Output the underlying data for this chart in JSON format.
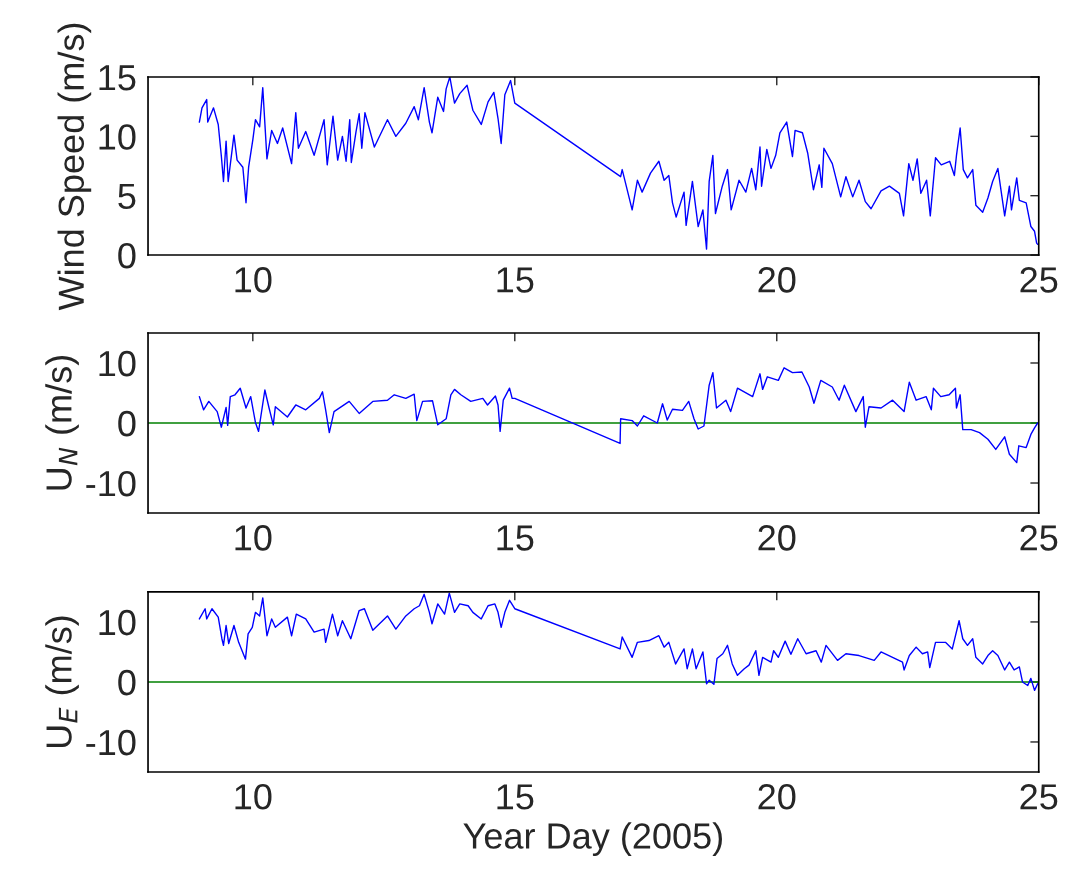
{
  "chart_data": [
    {
      "type": "line",
      "ylabel": "Wind Speed (m/s)",
      "xlim": [
        8,
        25
      ],
      "xticks": [
        10,
        15,
        20,
        25
      ],
      "ylim": [
        0,
        15
      ],
      "yticks": [
        0,
        5,
        10,
        15
      ],
      "grid": false,
      "series": [
        {
          "color": "#0000ff",
          "x": [
            8.98,
            9.03,
            9.12,
            9.14,
            9.25,
            9.34,
            9.4,
            9.44,
            9.49,
            9.53,
            9.64,
            9.7,
            9.81,
            9.87,
            9.92,
            10.0,
            10.05,
            10.13,
            10.19,
            10.27,
            10.36,
            10.47,
            10.57,
            10.74,
            10.82,
            10.87,
            11.01,
            11.17,
            11.36,
            11.42,
            11.53,
            11.62,
            11.71,
            11.78,
            11.85,
            11.88,
            11.97,
            12.03,
            12.08,
            12.14,
            12.32,
            12.57,
            12.73,
            12.92,
            13.08,
            13.16,
            13.27,
            13.37,
            13.42,
            13.53,
            13.64,
            13.69,
            13.76,
            13.85,
            13.95,
            14.09,
            14.2,
            14.36,
            14.49,
            14.6,
            14.68,
            14.74,
            14.81,
            14.92,
            15.0,
            17.02,
            17.05,
            17.24,
            17.34,
            17.43,
            17.59,
            17.75,
            17.85,
            17.94,
            18.01,
            18.08,
            18.23,
            18.27,
            18.39,
            18.5,
            18.59,
            18.66,
            18.71,
            18.78,
            18.83,
            18.96,
            19.06,
            19.13,
            19.28,
            19.41,
            19.52,
            19.6,
            19.68,
            19.71,
            19.81,
            19.89,
            19.98,
            20.06,
            20.19,
            20.3,
            20.35,
            20.49,
            20.59,
            20.7,
            20.81,
            20.86,
            20.9,
            21.06,
            21.22,
            21.32,
            21.45,
            21.57,
            21.69,
            21.8,
            21.99,
            22.15,
            22.34,
            22.42,
            22.52,
            22.6,
            22.68,
            22.75,
            22.86,
            22.93,
            23.03,
            23.14,
            23.3,
            23.39,
            23.43,
            23.5,
            23.56,
            23.64,
            23.74,
            23.8,
            23.93,
            24.03,
            24.12,
            24.22,
            24.35,
            24.44,
            24.48,
            24.58,
            24.63,
            24.76,
            24.85,
            24.92,
            24.96,
            24.98
          ],
          "values": [
            11.2,
            12.4,
            13.1,
            11.2,
            12.4,
            11.0,
            8.3,
            6.2,
            9.6,
            6.2,
            10.1,
            8.0,
            7.4,
            4.4,
            7.4,
            9.7,
            11.4,
            10.8,
            14.1,
            8.1,
            10.5,
            9.4,
            10.7,
            7.7,
            12.0,
            9.0,
            10.4,
            8.4,
            11.4,
            7.6,
            11.7,
            8.0,
            10.0,
            7.9,
            11.4,
            7.8,
            10.4,
            11.9,
            9.0,
            12.0,
            9.1,
            11.4,
            10.0,
            11.1,
            12.5,
            11.4,
            14.1,
            11.2,
            10.3,
            13.3,
            12.1,
            14.0,
            15.0,
            12.8,
            13.6,
            14.3,
            12.2,
            11.0,
            12.9,
            13.7,
            11.5,
            9.4,
            13.5,
            14.7,
            12.8,
            6.6,
            7.2,
            3.8,
            6.3,
            5.3,
            6.9,
            7.9,
            6.3,
            6.7,
            4.4,
            3.2,
            5.3,
            2.5,
            6.2,
            2.4,
            3.8,
            0.5,
            6.2,
            8.4,
            3.5,
            5.8,
            7.2,
            3.8,
            6.3,
            5.3,
            7.3,
            5.5,
            9.1,
            5.8,
            8.9,
            7.3,
            8.4,
            10.3,
            11.2,
            8.3,
            10.5,
            10.3,
            8.6,
            5.5,
            7.6,
            5.7,
            9.0,
            7.7,
            4.9,
            6.6,
            4.9,
            6.3,
            4.5,
            3.9,
            5.4,
            5.8,
            5.2,
            3.3,
            7.7,
            6.3,
            8.1,
            5.2,
            6.3,
            3.3,
            8.2,
            7.6,
            7.9,
            6.7,
            8.4,
            10.7,
            7.2,
            6.5,
            7.2,
            4.2,
            3.6,
            4.8,
            6.2,
            7.3,
            3.3,
            5.8,
            3.8,
            6.5,
            4.6,
            4.4,
            2.4,
            2.0,
            1.0,
            0.9
          ]
        }
      ]
    },
    {
      "type": "line",
      "ylabel": "U$_{N}$ (m/s)",
      "xlim": [
        8,
        25
      ],
      "xticks": [
        10,
        15,
        20,
        25
      ],
      "ylim": [
        -15,
        15
      ],
      "yticks": [
        -10,
        0,
        10
      ],
      "grid": false,
      "ref_lines": [
        {
          "axis": "y",
          "value": 0,
          "color": "#008000"
        }
      ],
      "series": [
        {
          "color": "#0000ff",
          "x": [
            8.98,
            9.06,
            9.16,
            9.32,
            9.4,
            9.49,
            9.52,
            9.57,
            9.66,
            9.76,
            9.87,
            9.96,
            10.05,
            10.11,
            10.23,
            10.31,
            10.39,
            10.43,
            10.66,
            10.82,
            11.01,
            11.27,
            11.33,
            11.39,
            11.46,
            11.55,
            11.84,
            12.03,
            12.29,
            12.57,
            12.7,
            12.92,
            13.08,
            13.13,
            13.24,
            13.43,
            13.53,
            13.69,
            13.78,
            13.85,
            13.97,
            14.16,
            14.39,
            14.48,
            14.63,
            14.68,
            14.72,
            14.78,
            14.9,
            14.95,
            15.0,
            17.01,
            17.02,
            17.24,
            17.34,
            17.46,
            17.72,
            17.82,
            17.91,
            18.01,
            18.2,
            18.32,
            18.42,
            18.5,
            18.61,
            18.71,
            18.78,
            18.85,
            19.03,
            19.12,
            19.25,
            19.54,
            19.68,
            19.73,
            19.82,
            20.03,
            20.14,
            20.3,
            20.48,
            20.62,
            20.71,
            20.84,
            21.06,
            21.19,
            21.29,
            21.51,
            21.65,
            21.69,
            21.76,
            21.99,
            22.21,
            22.43,
            22.53,
            22.66,
            22.85,
            22.95,
            22.99,
            23.13,
            23.29,
            23.41,
            23.43,
            23.5,
            23.55,
            23.71,
            23.87,
            24.03,
            24.18,
            24.35,
            24.44,
            24.58,
            24.62,
            24.76,
            24.85,
            24.92,
            24.98
          ],
          "values": [
            4.4,
            2.2,
            3.6,
            1.9,
            -0.7,
            2.6,
            -0.4,
            4.4,
            4.7,
            5.8,
            2.5,
            4.4,
            0.1,
            -1.4,
            5.5,
            2.5,
            -0.3,
            2.7,
            1.0,
            3.0,
            2.2,
            4.1,
            5.2,
            2.2,
            -1.6,
            1.9,
            3.6,
            1.6,
            3.6,
            3.8,
            4.7,
            4.1,
            4.8,
            0.4,
            3.6,
            3.7,
            -0.3,
            0.7,
            4.7,
            5.6,
            4.7,
            3.6,
            4.1,
            3.0,
            4.5,
            3.0,
            -1.4,
            3.8,
            5.8,
            4.1,
            4.1,
            -3.4,
            0.7,
            0.4,
            -0.5,
            1.2,
            0.0,
            3.2,
            0.5,
            2.3,
            2.1,
            3.6,
            0.7,
            -1.0,
            -0.5,
            6.3,
            8.4,
            2.5,
            3.8,
            1.9,
            5.8,
            4.4,
            8.2,
            5.6,
            7.7,
            7.1,
            9.2,
            8.4,
            8.5,
            6.0,
            3.3,
            7.1,
            6.0,
            3.8,
            6.3,
            1.9,
            4.4,
            -0.7,
            2.7,
            2.5,
            3.8,
            1.9,
            6.8,
            3.8,
            4.4,
            2.2,
            5.8,
            4.4,
            4.7,
            5.8,
            2.5,
            4.7,
            -1.1,
            -1.1,
            -1.6,
            -2.7,
            -4.4,
            -2.3,
            -5.2,
            -6.6,
            -3.8,
            -4.1,
            -1.9,
            -0.8,
            0.0
          ]
        }
      ]
    },
    {
      "type": "line",
      "ylabel": "U$_{E}$ (m/s)",
      "xlabel": "Year Day (2005)",
      "xlim": [
        8,
        25
      ],
      "xticks": [
        10,
        15,
        20,
        25
      ],
      "ylim": [
        -15,
        15
      ],
      "yticks": [
        -10,
        0,
        10
      ],
      "grid": false,
      "ref_lines": [
        {
          "axis": "y",
          "value": 0,
          "color": "#008000"
        }
      ],
      "series": [
        {
          "color": "#0000ff",
          "x": [
            8.98,
            9.09,
            9.12,
            9.22,
            9.34,
            9.41,
            9.44,
            9.49,
            9.54,
            9.64,
            9.73,
            9.86,
            9.91,
            9.99,
            10.05,
            10.13,
            10.19,
            10.27,
            10.36,
            10.43,
            10.66,
            10.74,
            10.83,
            11.01,
            11.17,
            11.36,
            11.39,
            11.52,
            11.62,
            11.71,
            11.87,
            12.03,
            12.13,
            12.29,
            12.57,
            12.73,
            12.92,
            13.08,
            13.18,
            13.27,
            13.37,
            13.42,
            13.53,
            13.66,
            13.75,
            13.85,
            13.95,
            14.11,
            14.2,
            14.36,
            14.49,
            14.62,
            14.68,
            14.74,
            14.81,
            14.9,
            15.0,
            17.01,
            17.05,
            17.24,
            17.34,
            17.56,
            17.75,
            17.85,
            17.94,
            18.07,
            18.23,
            18.29,
            18.39,
            18.46,
            18.59,
            18.66,
            18.71,
            18.8,
            18.86,
            18.97,
            19.06,
            19.15,
            19.25,
            19.38,
            19.47,
            19.6,
            19.66,
            19.73,
            19.89,
            19.94,
            20.03,
            20.16,
            20.27,
            20.4,
            20.56,
            20.75,
            20.85,
            20.94,
            21.16,
            21.32,
            21.57,
            21.86,
            21.99,
            22.21,
            22.4,
            22.43,
            22.53,
            22.66,
            22.78,
            22.88,
            22.92,
            23.03,
            23.22,
            23.35,
            23.48,
            23.55,
            23.64,
            23.74,
            23.8,
            23.93,
            24.03,
            24.12,
            24.22,
            24.35,
            24.44,
            24.53,
            24.63,
            24.69,
            24.79,
            24.85,
            24.92,
            24.98
          ],
          "values": [
            10.5,
            12.2,
            10.5,
            12.2,
            10.8,
            7.2,
            6.1,
            9.4,
            6.4,
            9.4,
            6.6,
            3.8,
            8.0,
            9.1,
            11.6,
            11.0,
            14.0,
            7.7,
            10.5,
            9.1,
            10.8,
            7.7,
            11.3,
            10.5,
            8.3,
            8.8,
            6.6,
            11.3,
            7.7,
            10.2,
            7.2,
            11.9,
            12.2,
            8.6,
            11.0,
            8.8,
            11.0,
            12.2,
            12.7,
            14.6,
            11.6,
            9.7,
            13.0,
            11.3,
            14.8,
            11.6,
            13.0,
            12.7,
            11.6,
            10.5,
            12.7,
            13.0,
            11.6,
            9.1,
            11.6,
            13.6,
            12.2,
            5.5,
            7.5,
            4.1,
            6.6,
            6.9,
            7.7,
            5.8,
            6.6,
            3.0,
            5.5,
            2.2,
            5.5,
            2.2,
            5.0,
            -0.3,
            0.3,
            -0.4,
            3.9,
            4.7,
            6.1,
            3.0,
            1.1,
            2.2,
            2.8,
            5.2,
            1.1,
            4.1,
            3.3,
            5.2,
            4.1,
            6.8,
            4.6,
            7.2,
            4.7,
            5.2,
            3.3,
            6.1,
            3.6,
            4.7,
            4.4,
            3.6,
            5.0,
            4.1,
            3.3,
            2.0,
            4.4,
            5.8,
            4.7,
            5.0,
            2.4,
            6.6,
            6.6,
            5.5,
            10.2,
            7.2,
            6.1,
            7.2,
            4.1,
            3.0,
            4.4,
            5.2,
            4.4,
            2.0,
            3.3,
            2.0,
            2.5,
            0.0,
            -0.6,
            0.6,
            -1.4,
            -0.3
          ]
        }
      ]
    }
  ]
}
